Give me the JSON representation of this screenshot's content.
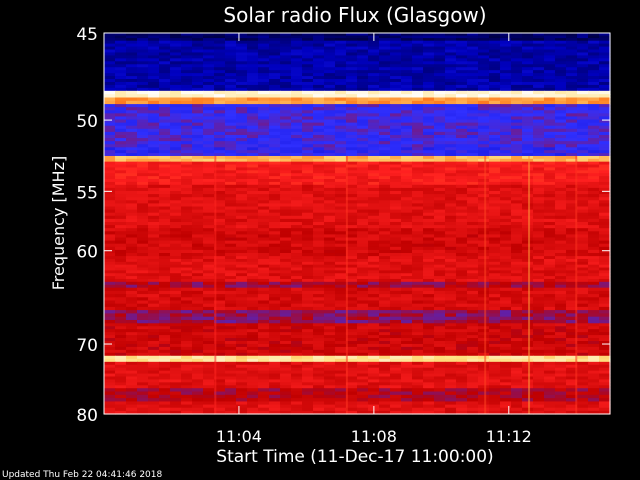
{
  "chart_data": {
    "type": "heatmap",
    "title": "Solar radio Flux (Glasgow)",
    "ylabel": "Frequency [MHz]",
    "xlabel": "Start Time (11-Dec-17 11:00:00)",
    "footer": "Updated Thu Feb 22 04:41:46 2018",
    "y_ticks": [
      45,
      50,
      55,
      60,
      70,
      80
    ],
    "x_ticks": [
      {
        "label": "11:04",
        "minutes": 4
      },
      {
        "label": "11:08",
        "minutes": 8
      },
      {
        "label": "11:12",
        "minutes": 12
      }
    ],
    "x_range_minutes": [
      0,
      15
    ],
    "y_range_mhz": [
      45,
      80
    ],
    "y_scale": "reciprocal",
    "colormap": [
      "#000040",
      "#0000c0",
      "#3030ff",
      "#c00000",
      "#ff2020",
      "#ff8020",
      "#ffe080",
      "#ffffff"
    ],
    "bands": [
      {
        "from_mhz": 45.0,
        "to_mhz": 45.4,
        "level": 0.05
      },
      {
        "from_mhz": 45.4,
        "to_mhz": 48.2,
        "level": 0.12
      },
      {
        "from_mhz": 48.2,
        "to_mhz": 48.6,
        "level": 0.95
      },
      {
        "from_mhz": 48.6,
        "to_mhz": 49.0,
        "level": 0.75
      },
      {
        "from_mhz": 49.0,
        "to_mhz": 51.8,
        "level": 0.3
      },
      {
        "from_mhz": 51.8,
        "to_mhz": 52.4,
        "level": 0.28
      },
      {
        "from_mhz": 52.4,
        "to_mhz": 52.8,
        "level": 0.8
      },
      {
        "from_mhz": 52.8,
        "to_mhz": 54.5,
        "level": 0.55
      },
      {
        "from_mhz": 54.5,
        "to_mhz": 58.0,
        "level": 0.5
      },
      {
        "from_mhz": 58.0,
        "to_mhz": 60.5,
        "level": 0.47
      },
      {
        "from_mhz": 60.5,
        "to_mhz": 63.0,
        "level": 0.5
      },
      {
        "from_mhz": 63.0,
        "to_mhz": 63.6,
        "level": 0.4
      },
      {
        "from_mhz": 63.6,
        "to_mhz": 66.0,
        "level": 0.48
      },
      {
        "from_mhz": 66.0,
        "to_mhz": 67.5,
        "level": 0.38
      },
      {
        "from_mhz": 67.5,
        "to_mhz": 71.5,
        "level": 0.46
      },
      {
        "from_mhz": 71.5,
        "to_mhz": 72.3,
        "level": 0.88
      },
      {
        "from_mhz": 72.3,
        "to_mhz": 76.0,
        "level": 0.5
      },
      {
        "from_mhz": 76.0,
        "to_mhz": 78.0,
        "level": 0.42
      },
      {
        "from_mhz": 78.0,
        "to_mhz": 80.0,
        "level": 0.5
      }
    ],
    "bursts": [
      {
        "minutes": 12.6,
        "level": 0.75
      },
      {
        "minutes": 11.3,
        "level": 0.62
      },
      {
        "minutes": 7.2,
        "level": 0.6
      },
      {
        "minutes": 3.3,
        "level": 0.58
      },
      {
        "minutes": 14.0,
        "level": 0.6
      }
    ]
  }
}
